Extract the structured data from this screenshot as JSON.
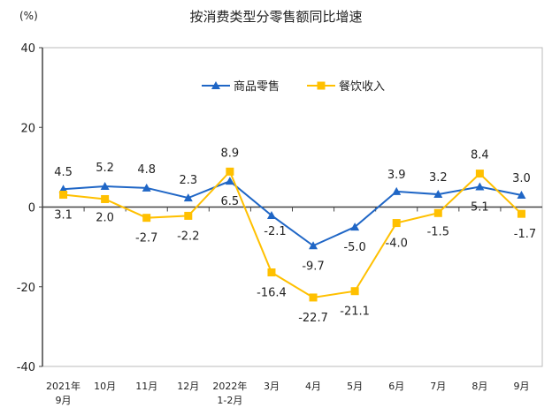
{
  "chart_data": {
    "type": "line",
    "title": "按消费类型分零售额同比增速",
    "ylabel": "(%)",
    "ylim": [
      -40,
      40
    ],
    "yticks": [
      40,
      20,
      0,
      -20,
      -40
    ],
    "grid": false,
    "legend_placement": "top-center",
    "categories": [
      [
        "2021年",
        "9月"
      ],
      [
        "10月"
      ],
      [
        "11月"
      ],
      [
        "12月"
      ],
      [
        "2022年",
        "1-2月"
      ],
      [
        "3月"
      ],
      [
        "4月"
      ],
      [
        "5月"
      ],
      [
        "6月"
      ],
      [
        "7月"
      ],
      [
        "8月"
      ],
      [
        "9月"
      ]
    ],
    "series": [
      {
        "name": "商品零售",
        "color": "#1F66C6",
        "marker": "triangle",
        "values": [
          4.5,
          5.2,
          4.8,
          2.3,
          6.5,
          -2.1,
          -9.7,
          -5.0,
          3.9,
          3.2,
          5.1,
          3.0
        ],
        "labels": [
          "4.5",
          "5.2",
          "4.8",
          "2.3",
          "6.5",
          "-2.1",
          "-9.7",
          "-5.0",
          "3.9",
          "3.2",
          "5.1",
          "3.0"
        ]
      },
      {
        "name": "餐饮收入",
        "color": "#FFC000",
        "marker": "square",
        "values": [
          3.1,
          2.0,
          -2.7,
          -2.2,
          8.9,
          -16.4,
          -22.7,
          -21.1,
          -4.0,
          -1.5,
          8.4,
          -1.7
        ],
        "labels": [
          "3.1",
          "2.0",
          "-2.7",
          "-2.2",
          "8.9",
          "-16.4",
          "-22.7",
          "-21.1",
          "-4.0",
          "-1.5",
          "8.4",
          "-1.7"
        ]
      }
    ]
  }
}
